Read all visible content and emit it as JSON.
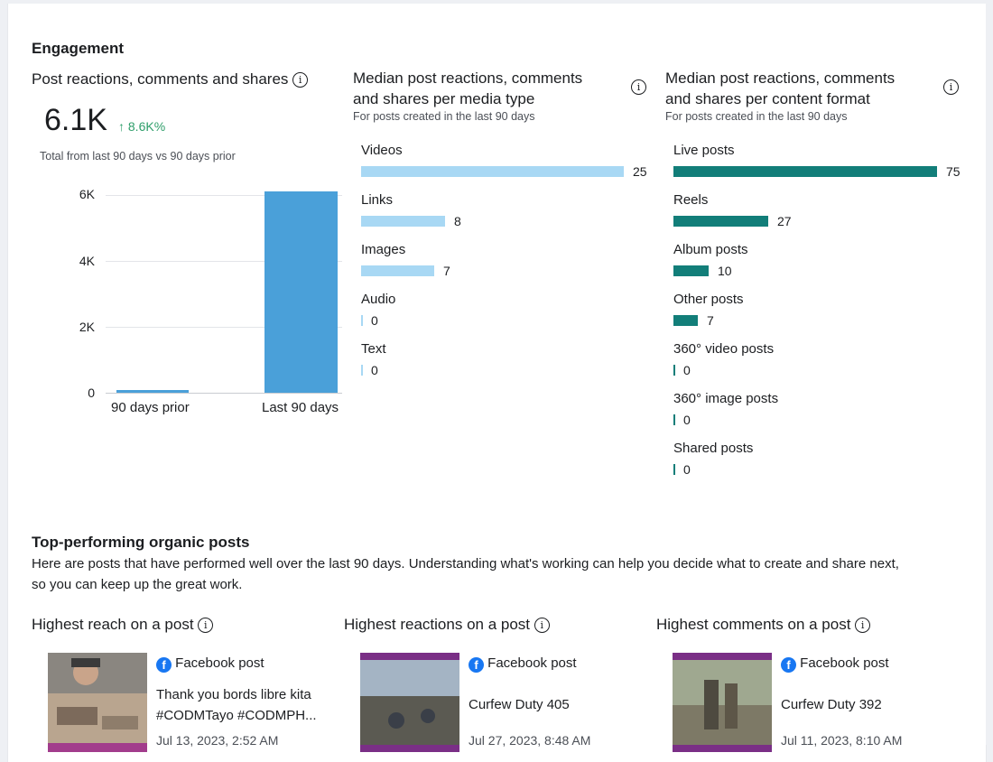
{
  "engagement": {
    "section_title": "Engagement",
    "summary": {
      "title": "Post reactions, comments and shares",
      "value": "6.1K",
      "delta": "8.6K%",
      "caption": "Total from last 90 days vs 90 days prior",
      "y_ticks": [
        "6K",
        "4K",
        "2K",
        "0"
      ],
      "x_labels": [
        "90 days prior",
        "Last 90 days"
      ]
    },
    "media_type": {
      "title_line1": "Median post reactions, comments",
      "title_line2": "and shares per media type",
      "subtitle": "For posts created in the last 90 days",
      "color": "#a8d8f4"
    },
    "content_format": {
      "title_line1": "Median post reactions, comments",
      "title_line2": "and shares per content format",
      "subtitle": "For posts created in the last 90 days",
      "color": "#127e79"
    }
  },
  "chart_data": [
    {
      "type": "bar",
      "title": "Post reactions, comments and shares",
      "categories": [
        "90 days prior",
        "Last 90 days"
      ],
      "values": [
        70,
        6100
      ],
      "ylim": [
        0,
        6000
      ],
      "y_ticks": [
        0,
        2000,
        4000,
        6000
      ],
      "grid": true
    },
    {
      "type": "bar",
      "orientation": "horizontal",
      "title": "Median post reactions, comments and shares per media type",
      "categories": [
        "Videos",
        "Links",
        "Images",
        "Audio",
        "Text"
      ],
      "values": [
        25,
        8,
        7,
        0,
        0
      ],
      "max": 25
    },
    {
      "type": "bar",
      "orientation": "horizontal",
      "title": "Median post reactions, comments and shares per content format",
      "categories": [
        "Live posts",
        "Reels",
        "Album posts",
        "Other posts",
        "360° video posts",
        "360° image posts",
        "Shared posts"
      ],
      "values": [
        75,
        27,
        10,
        7,
        0,
        0,
        0
      ],
      "max": 75
    }
  ],
  "top_posts": {
    "section_title": "Top-performing organic posts",
    "description_line1": "Here are posts that have performed well over the last 90 days. Understanding what's working can help you decide what to create and share next,",
    "description_line2": "so you can keep up the great work.",
    "columns": [
      {
        "title": "Highest reach on a post",
        "post_type": "Facebook post",
        "text_line1": "Thank you bords libre kita",
        "text_line2": "#CODMTayo #CODMPH...",
        "date": "Jul 13, 2023, 2:52 AM"
      },
      {
        "title": "Highest reactions on a post",
        "post_type": "Facebook post",
        "text_line1": "Curfew Duty 405",
        "text_line2": "",
        "date": "Jul 27, 2023, 8:48 AM"
      },
      {
        "title": "Highest comments on a post",
        "post_type": "Facebook post",
        "text_line1": "Curfew Duty 392",
        "text_line2": "",
        "date": "Jul 11, 2023, 8:10 AM"
      }
    ]
  },
  "icons": {
    "info": "info-icon",
    "trend": "arrow-up-icon",
    "facebook": "facebook-icon"
  },
  "colors": {
    "accent_blue": "#4aa0d9",
    "positive": "#2e9e6a",
    "facebook": "#1877f2"
  }
}
